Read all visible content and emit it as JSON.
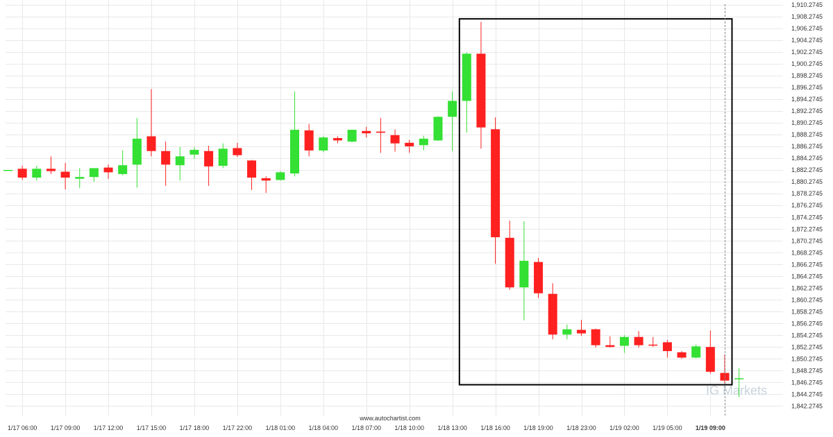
{
  "chart_data": {
    "type": "candlestick",
    "source_label": "www.autochartist.com",
    "watermark": "IG Markets",
    "colors": {
      "up": "#33e033",
      "down": "#ff2020",
      "grid": "#e8e8e8",
      "pattern_box": "#000000",
      "crosshair": "#888888"
    },
    "y_axis": {
      "min": 1841.2745,
      "max": 1910.2745,
      "ticks": [
        "1,910.2745",
        "1,908.2745",
        "1,906.2745",
        "1,904.2745",
        "1,902.2745",
        "1,900.2745",
        "1,898.2745",
        "1,896.2745",
        "1,894.2745",
        "1,892.2745",
        "1,890.2745",
        "1,888.2745",
        "1,886.2745",
        "1,884.2745",
        "1,882.2745",
        "1,880.2745",
        "1,878.2745",
        "1,876.2745",
        "1,874.2745",
        "1,872.2745",
        "1,870.2745",
        "1,868.2745",
        "1,866.2745",
        "1,864.2745",
        "1,862.2745",
        "1,860.2745",
        "1,858.2745",
        "1,856.2745",
        "1,854.2745",
        "1,852.2745",
        "1,850.2745",
        "1,848.2745",
        "1,846.2745",
        "1,844.2745",
        "1,842.2745"
      ],
      "tick_values": [
        1910.2745,
        1908.2745,
        1906.2745,
        1904.2745,
        1902.2745,
        1900.2745,
        1898.2745,
        1896.2745,
        1894.2745,
        1892.2745,
        1890.2745,
        1888.2745,
        1886.2745,
        1884.2745,
        1882.2745,
        1880.2745,
        1878.2745,
        1876.2745,
        1874.2745,
        1872.2745,
        1870.2745,
        1868.2745,
        1866.2745,
        1864.2745,
        1862.2745,
        1860.2745,
        1858.2745,
        1856.2745,
        1854.2745,
        1852.2745,
        1850.2745,
        1848.2745,
        1846.2745,
        1844.2745,
        1842.2745
      ]
    },
    "x_axis": {
      "ticks": [
        {
          "label": "1/17 06:00",
          "candle": 1
        },
        {
          "label": "1/17 09:00",
          "candle": 4
        },
        {
          "label": "1/17 12:00",
          "candle": 7
        },
        {
          "label": "1/17 15:00",
          "candle": 10
        },
        {
          "label": "1/17 18:00",
          "candle": 13
        },
        {
          "label": "1/17 22:00",
          "candle": 16
        },
        {
          "label": "1/18 01:00",
          "candle": 19
        },
        {
          "label": "1/18 04:00",
          "candle": 22
        },
        {
          "label": "1/18 07:00",
          "candle": 25
        },
        {
          "label": "1/18 10:00",
          "candle": 28
        },
        {
          "label": "1/18 13:00",
          "candle": 31
        },
        {
          "label": "1/18 16:00",
          "candle": 34
        },
        {
          "label": "1/18 19:00",
          "candle": 37
        },
        {
          "label": "1/18 23:00",
          "candle": 40
        },
        {
          "label": "1/19 02:00",
          "candle": 43
        },
        {
          "label": "1/19 05:00",
          "candle": 46
        },
        {
          "label": "1/19 09:00",
          "candle": 49,
          "bold": true
        }
      ]
    },
    "candles": [
      {
        "o": 1882.3,
        "h": 1882.3,
        "l": 1882.3,
        "c": 1882.3
      },
      {
        "o": 1882.5,
        "h": 1883.0,
        "l": 1880.6,
        "c": 1881.0
      },
      {
        "o": 1881.0,
        "h": 1883.0,
        "l": 1880.5,
        "c": 1882.5
      },
      {
        "o": 1882.5,
        "h": 1884.6,
        "l": 1881.6,
        "c": 1882.1
      },
      {
        "o": 1882.0,
        "h": 1883.5,
        "l": 1879.0,
        "c": 1881.0
      },
      {
        "o": 1880.8,
        "h": 1882.6,
        "l": 1879.2,
        "c": 1881.1
      },
      {
        "o": 1881.1,
        "h": 1882.6,
        "l": 1880.3,
        "c": 1882.6
      },
      {
        "o": 1882.7,
        "h": 1883.2,
        "l": 1880.8,
        "c": 1881.9
      },
      {
        "o": 1881.6,
        "h": 1885.6,
        "l": 1881.4,
        "c": 1883.1
      },
      {
        "o": 1883.2,
        "h": 1891.1,
        "l": 1879.3,
        "c": 1887.6
      },
      {
        "o": 1888.0,
        "h": 1896.0,
        "l": 1884.6,
        "c": 1885.5
      },
      {
        "o": 1885.5,
        "h": 1887.1,
        "l": 1879.6,
        "c": 1883.2
      },
      {
        "o": 1883.1,
        "h": 1886.2,
        "l": 1880.5,
        "c": 1884.6
      },
      {
        "o": 1884.9,
        "h": 1886.1,
        "l": 1884.2,
        "c": 1885.7
      },
      {
        "o": 1885.5,
        "h": 1886.4,
        "l": 1879.6,
        "c": 1882.9
      },
      {
        "o": 1883.0,
        "h": 1886.8,
        "l": 1882.6,
        "c": 1885.9
      },
      {
        "o": 1886.0,
        "h": 1886.9,
        "l": 1884.5,
        "c": 1884.8
      },
      {
        "o": 1883.9,
        "h": 1884.0,
        "l": 1878.9,
        "c": 1881.0
      },
      {
        "o": 1880.9,
        "h": 1881.2,
        "l": 1878.4,
        "c": 1880.5
      },
      {
        "o": 1880.6,
        "h": 1882.1,
        "l": 1880.5,
        "c": 1881.9
      },
      {
        "o": 1881.7,
        "h": 1895.6,
        "l": 1881.2,
        "c": 1889.1
      },
      {
        "o": 1889.0,
        "h": 1890.1,
        "l": 1884.6,
        "c": 1885.6
      },
      {
        "o": 1885.6,
        "h": 1888.0,
        "l": 1885.3,
        "c": 1887.8
      },
      {
        "o": 1887.7,
        "h": 1888.0,
        "l": 1886.8,
        "c": 1887.3
      },
      {
        "o": 1887.1,
        "h": 1889.1,
        "l": 1887.0,
        "c": 1889.1
      },
      {
        "o": 1888.9,
        "h": 1889.6,
        "l": 1887.8,
        "c": 1888.5
      },
      {
        "o": 1888.8,
        "h": 1891.1,
        "l": 1885.2,
        "c": 1888.6
      },
      {
        "o": 1888.2,
        "h": 1889.2,
        "l": 1885.4,
        "c": 1886.8
      },
      {
        "o": 1886.9,
        "h": 1887.4,
        "l": 1885.2,
        "c": 1886.3
      },
      {
        "o": 1886.5,
        "h": 1888.1,
        "l": 1885.6,
        "c": 1887.6
      },
      {
        "o": 1887.3,
        "h": 1891.4,
        "l": 1887.2,
        "c": 1891.3
      },
      {
        "o": 1891.3,
        "h": 1895.6,
        "l": 1885.5,
        "c": 1894.0
      },
      {
        "o": 1894.0,
        "h": 1902.2,
        "l": 1888.6,
        "c": 1902.0
      },
      {
        "o": 1902.0,
        "h": 1907.4,
        "l": 1885.9,
        "c": 1889.5
      },
      {
        "o": 1889.2,
        "h": 1891.2,
        "l": 1866.4,
        "c": 1870.9
      },
      {
        "o": 1870.8,
        "h": 1873.7,
        "l": 1862.0,
        "c": 1862.4
      },
      {
        "o": 1862.4,
        "h": 1873.6,
        "l": 1856.8,
        "c": 1866.9
      },
      {
        "o": 1866.7,
        "h": 1867.4,
        "l": 1860.6,
        "c": 1861.4
      },
      {
        "o": 1861.3,
        "h": 1863.1,
        "l": 1853.6,
        "c": 1854.4
      },
      {
        "o": 1854.4,
        "h": 1856.1,
        "l": 1853.6,
        "c": 1855.3
      },
      {
        "o": 1855.2,
        "h": 1856.9,
        "l": 1854.2,
        "c": 1854.6
      },
      {
        "o": 1855.3,
        "h": 1855.4,
        "l": 1852.2,
        "c": 1852.6
      },
      {
        "o": 1852.6,
        "h": 1854.1,
        "l": 1852.2,
        "c": 1852.3
      },
      {
        "o": 1852.5,
        "h": 1854.3,
        "l": 1851.3,
        "c": 1854.0
      },
      {
        "o": 1854.0,
        "h": 1855.0,
        "l": 1852.2,
        "c": 1852.6
      },
      {
        "o": 1852.7,
        "h": 1854.0,
        "l": 1852.3,
        "c": 1852.6
      },
      {
        "o": 1853.1,
        "h": 1853.5,
        "l": 1850.5,
        "c": 1851.6
      },
      {
        "o": 1851.4,
        "h": 1851.6,
        "l": 1850.3,
        "c": 1850.5
      },
      {
        "o": 1850.5,
        "h": 1852.7,
        "l": 1850.4,
        "c": 1852.4
      },
      {
        "o": 1852.3,
        "h": 1855.1,
        "l": 1847.8,
        "c": 1848.1
      },
      {
        "o": 1847.9,
        "h": 1851.0,
        "l": 1846.1,
        "c": 1846.6
      },
      {
        "o": 1847.0,
        "h": 1848.7,
        "l": 1843.8,
        "c": 1847.0
      }
    ],
    "pattern_box": {
      "from_candle": 32,
      "to_candle": 50,
      "top": 1907.9,
      "bottom": 1845.9
    },
    "crosshair_candle": 50
  }
}
